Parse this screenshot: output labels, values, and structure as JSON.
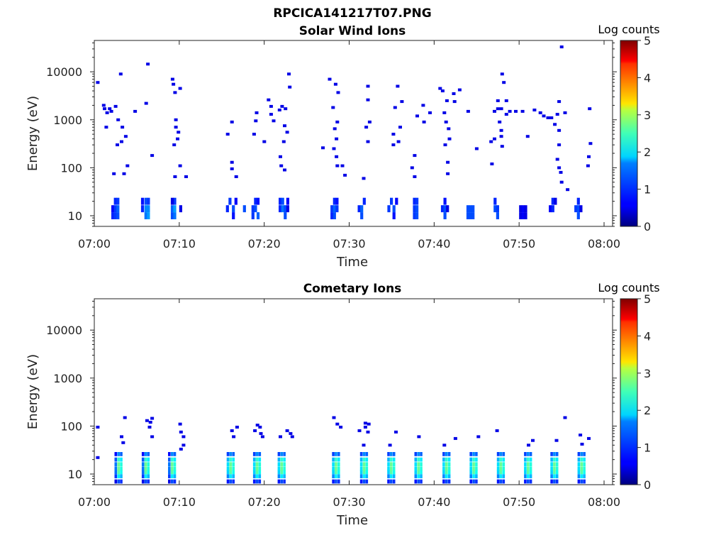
{
  "figure": {
    "title": "RPCICA141217T07.PNG"
  },
  "chart_data": [
    {
      "type": "heatmap",
      "title": "Solar Wind Ions",
      "xlabel": "Time",
      "ylabel": "Energy (eV)",
      "x_ticks": [
        "07:00",
        "07:10",
        "07:20",
        "07:30",
        "07:40",
        "07:50",
        "08:00"
      ],
      "x_range": [
        "07:00",
        "08:01"
      ],
      "y_scale": "log",
      "y_ticks": [
        "10",
        "100",
        "1000",
        "10000"
      ],
      "y_range": [
        6,
        45000
      ],
      "colorbar": {
        "label": "Log counts",
        "range": [
          0,
          5
        ],
        "ticks": [
          "0",
          "1",
          "2",
          "3",
          "4",
          "5"
        ],
        "colormap": "jet"
      },
      "cells": [
        [
          2.0,
          10,
          0.8
        ],
        [
          2.0,
          14,
          0.6
        ],
        [
          2.3,
          10,
          0.9
        ],
        [
          2.3,
          14,
          0.9
        ],
        [
          2.3,
          20,
          0.8
        ],
        [
          2.6,
          10,
          1.0
        ],
        [
          2.6,
          14,
          1.1
        ],
        [
          2.6,
          20,
          0.9
        ],
        [
          5.5,
          14,
          0.8
        ],
        [
          5.5,
          20,
          0.7
        ],
        [
          5.9,
          10,
          1.2
        ],
        [
          5.9,
          14,
          1.3
        ],
        [
          5.9,
          20,
          1.0
        ],
        [
          6.2,
          10,
          1.4
        ],
        [
          6.2,
          14,
          1.3
        ],
        [
          6.2,
          20,
          0.9
        ],
        [
          9.0,
          10,
          1.0
        ],
        [
          9.0,
          14,
          1.1
        ],
        [
          9.3,
          10,
          1.2
        ],
        [
          9.3,
          14,
          1.4
        ],
        [
          9.3,
          20,
          0.9
        ],
        [
          9.0,
          20,
          0.5
        ],
        [
          10.0,
          14,
          0.5
        ],
        [
          15.5,
          14,
          0.8
        ],
        [
          15.8,
          20,
          0.9
        ],
        [
          16.2,
          14,
          1.0
        ],
        [
          16.2,
          10,
          0.7
        ],
        [
          16.5,
          20,
          0.6
        ],
        [
          17.5,
          14,
          1.0
        ],
        [
          18.5,
          10,
          0.9
        ],
        [
          18.5,
          14,
          0.9
        ],
        [
          18.8,
          14,
          1.0
        ],
        [
          18.8,
          20,
          0.8
        ],
        [
          19.1,
          10,
          1.1
        ],
        [
          19.1,
          20,
          0.7
        ],
        [
          21.7,
          14,
          0.8
        ],
        [
          21.7,
          20,
          0.8
        ],
        [
          22.0,
          14,
          1.2
        ],
        [
          22.0,
          20,
          1.0
        ],
        [
          22.3,
          10,
          1.0
        ],
        [
          22.3,
          14,
          1.0
        ],
        [
          22.6,
          20,
          0.6
        ],
        [
          22.6,
          14,
          0.5
        ],
        [
          27.8,
          10,
          0.8
        ],
        [
          27.8,
          14,
          0.9
        ],
        [
          28.1,
          10,
          1.0
        ],
        [
          28.1,
          14,
          1.1
        ],
        [
          28.1,
          20,
          0.8
        ],
        [
          28.4,
          14,
          0.9
        ],
        [
          28.4,
          20,
          0.7
        ],
        [
          31.0,
          14,
          0.8
        ],
        [
          31.3,
          10,
          1.0
        ],
        [
          31.3,
          14,
          1.1
        ],
        [
          31.6,
          20,
          0.8
        ],
        [
          34.5,
          14,
          0.9
        ],
        [
          34.8,
          20,
          0.9
        ],
        [
          35.1,
          14,
          1.0
        ],
        [
          35.1,
          10,
          0.7
        ],
        [
          35.4,
          20,
          0.6
        ],
        [
          37.5,
          10,
          0.9
        ],
        [
          37.5,
          14,
          0.9
        ],
        [
          37.5,
          20,
          0.8
        ],
        [
          37.8,
          10,
          1.0
        ],
        [
          37.8,
          14,
          1.0
        ],
        [
          37.8,
          20,
          0.9
        ],
        [
          40.8,
          14,
          0.8
        ],
        [
          41.1,
          10,
          1.0
        ],
        [
          41.1,
          14,
          1.0
        ],
        [
          41.1,
          20,
          0.7
        ],
        [
          41.4,
          14,
          0.5
        ],
        [
          43.8,
          10,
          1.0
        ],
        [
          43.8,
          14,
          1.0
        ],
        [
          44.1,
          10,
          1.0
        ],
        [
          44.1,
          14,
          1.0
        ],
        [
          44.4,
          10,
          1.0
        ],
        [
          44.4,
          14,
          1.0
        ],
        [
          47.0,
          14,
          1.0
        ],
        [
          47.0,
          20,
          0.8
        ],
        [
          47.3,
          10,
          1.0
        ],
        [
          47.3,
          14,
          0.9
        ],
        [
          50.0,
          10,
          0.5
        ],
        [
          50.0,
          14,
          0.5
        ],
        [
          50.3,
          10,
          0.6
        ],
        [
          50.3,
          14,
          0.6
        ],
        [
          50.6,
          10,
          0.5
        ],
        [
          50.6,
          14,
          0.5
        ],
        [
          53.5,
          14,
          0.6
        ],
        [
          53.8,
          14,
          0.8
        ],
        [
          53.8,
          20,
          0.8
        ],
        [
          54.1,
          20,
          0.5
        ],
        [
          56.5,
          14,
          0.9
        ],
        [
          56.8,
          10,
          1.0
        ],
        [
          56.8,
          14,
          1.0
        ],
        [
          56.8,
          20,
          0.8
        ],
        [
          57.1,
          14,
          0.5
        ]
      ],
      "sparse_points": [
        [
          0.2,
          6000
        ],
        [
          0.9,
          2000
        ],
        [
          1.0,
          1700
        ],
        [
          1.2,
          700
        ],
        [
          1.3,
          1400
        ],
        [
          1.6,
          1700
        ],
        [
          1.8,
          1500
        ],
        [
          2.3,
          1900
        ],
        [
          2.6,
          1000
        ],
        [
          2.9,
          9000
        ],
        [
          3.1,
          700
        ],
        [
          3.5,
          450
        ],
        [
          3.0,
          350
        ],
        [
          2.5,
          300
        ],
        [
          3.7,
          110
        ],
        [
          3.3,
          75
        ],
        [
          2.1,
          75
        ],
        [
          4.6,
          1500
        ],
        [
          5.9,
          2200
        ],
        [
          6.1,
          14500
        ],
        [
          6.6,
          180
        ],
        [
          9.0,
          7000
        ],
        [
          9.1,
          5500
        ],
        [
          9.3,
          3700
        ],
        [
          9.4,
          1000
        ],
        [
          9.4,
          700
        ],
        [
          9.9,
          4500
        ],
        [
          9.6,
          400
        ],
        [
          9.2,
          300
        ],
        [
          9.7,
          550
        ],
        [
          9.9,
          110
        ],
        [
          10.6,
          65
        ],
        [
          9.3,
          65
        ],
        [
          15.5,
          500
        ],
        [
          16.0,
          900
        ],
        [
          16.0,
          130
        ],
        [
          16.0,
          95
        ],
        [
          16.5,
          65
        ],
        [
          18.6,
          500
        ],
        [
          18.8,
          950
        ],
        [
          18.9,
          1400
        ],
        [
          19.8,
          350
        ],
        [
          20.3,
          2600
        ],
        [
          20.6,
          1900
        ],
        [
          20.6,
          1300
        ],
        [
          20.9,
          950
        ],
        [
          21.6,
          1600
        ],
        [
          21.9,
          1900
        ],
        [
          22.3,
          1700
        ],
        [
          22.7,
          9000
        ],
        [
          22.8,
          4800
        ],
        [
          22.2,
          750
        ],
        [
          22.5,
          550
        ],
        [
          22.1,
          350
        ],
        [
          21.7,
          170
        ],
        [
          21.8,
          110
        ],
        [
          22.2,
          90
        ],
        [
          27.5,
          7000
        ],
        [
          28.2,
          5500
        ],
        [
          28.5,
          3700
        ],
        [
          27.9,
          1800
        ],
        [
          28.4,
          900
        ],
        [
          28.1,
          650
        ],
        [
          28.3,
          400
        ],
        [
          28.0,
          250
        ],
        [
          28.3,
          170
        ],
        [
          28.4,
          110
        ],
        [
          29.0,
          110
        ],
        [
          29.3,
          70
        ],
        [
          26.7,
          260
        ],
        [
          32.0,
          5000
        ],
        [
          32.0,
          2600
        ],
        [
          32.2,
          900
        ],
        [
          31.8,
          700
        ],
        [
          32.0,
          350
        ],
        [
          31.5,
          60
        ],
        [
          35.5,
          5000
        ],
        [
          36.0,
          2400
        ],
        [
          35.2,
          1800
        ],
        [
          35.0,
          500
        ],
        [
          35.6,
          350
        ],
        [
          35.0,
          300
        ],
        [
          35.8,
          700
        ],
        [
          37.5,
          180
        ],
        [
          37.2,
          100
        ],
        [
          37.5,
          65
        ],
        [
          37.8,
          1200
        ],
        [
          38.6,
          900
        ],
        [
          39.3,
          1400
        ],
        [
          38.5,
          2000
        ],
        [
          40.5,
          4500
        ],
        [
          40.8,
          4000
        ],
        [
          41.3,
          2500
        ],
        [
          42.1,
          3500
        ],
        [
          42.8,
          4200
        ],
        [
          42.2,
          2400
        ],
        [
          41.0,
          1400
        ],
        [
          41.2,
          900
        ],
        [
          41.5,
          650
        ],
        [
          41.6,
          400
        ],
        [
          41.1,
          300
        ],
        [
          41.4,
          130
        ],
        [
          41.4,
          75
        ],
        [
          43.8,
          1500
        ],
        [
          44.8,
          250
        ],
        [
          46.5,
          350
        ],
        [
          46.9,
          1500
        ],
        [
          47.3,
          1700
        ],
        [
          47.3,
          2500
        ],
        [
          47.7,
          1700
        ],
        [
          47.8,
          9000
        ],
        [
          48.0,
          6000
        ],
        [
          48.3,
          2500
        ],
        [
          48.3,
          1300
        ],
        [
          47.5,
          900
        ],
        [
          47.7,
          600
        ],
        [
          47.7,
          450
        ],
        [
          47.8,
          280
        ],
        [
          46.9,
          400
        ],
        [
          46.6,
          120
        ],
        [
          48.7,
          1500
        ],
        [
          49.4,
          1500
        ],
        [
          50.2,
          1500
        ],
        [
          50.8,
          450
        ],
        [
          51.6,
          1600
        ],
        [
          52.3,
          1400
        ],
        [
          52.7,
          1200
        ],
        [
          53.2,
          1100
        ],
        [
          53.6,
          1100
        ],
        [
          54.0,
          800
        ],
        [
          54.3,
          1300
        ],
        [
          54.5,
          2400
        ],
        [
          55.2,
          1400
        ],
        [
          54.5,
          600
        ],
        [
          54.5,
          300
        ],
        [
          54.3,
          150
        ],
        [
          54.5,
          100
        ],
        [
          54.7,
          80
        ],
        [
          54.8,
          50
        ],
        [
          54.8,
          33000
        ],
        [
          55.5,
          35
        ],
        [
          58.1,
          1700
        ],
        [
          58.2,
          320
        ],
        [
          58.0,
          170
        ],
        [
          57.9,
          110
        ]
      ]
    },
    {
      "type": "heatmap",
      "title": "Cometary Ions",
      "xlabel": "Time",
      "ylabel": "Energy (eV)",
      "x_ticks": [
        "07:00",
        "07:10",
        "07:20",
        "07:30",
        "07:40",
        "07:50",
        "08:00"
      ],
      "x_range": [
        "07:00",
        "08:01"
      ],
      "y_scale": "log",
      "y_ticks": [
        "10",
        "100",
        "1000",
        "10000"
      ],
      "y_range": [
        6,
        45000
      ],
      "colorbar": {
        "label": "Log counts",
        "range": [
          0,
          5
        ],
        "ticks": [
          "0",
          "1",
          "2",
          "3",
          "4",
          "5"
        ],
        "colormap": "jet"
      },
      "burst_times_min": [
        2.7,
        5.9,
        9.0,
        15.9,
        19.0,
        21.9,
        28.3,
        31.6,
        34.8,
        38.0,
        41.3,
        44.5,
        47.7,
        50.9,
        54.0,
        57.2
      ],
      "burst_profile": [
        [
          7,
          1.0
        ],
        [
          9,
          1.8
        ],
        [
          11,
          2.3
        ],
        [
          13,
          2.4
        ],
        [
          16,
          2.4
        ],
        [
          20,
          2.1
        ],
        [
          26,
          1.3
        ]
      ],
      "sparse_points": [
        [
          0.2,
          95
        ],
        [
          0.2,
          22
        ],
        [
          3.0,
          60
        ],
        [
          3.2,
          45
        ],
        [
          3.4,
          150
        ],
        [
          6.0,
          130
        ],
        [
          6.4,
          120
        ],
        [
          6.3,
          95
        ],
        [
          6.6,
          60
        ],
        [
          6.6,
          145
        ],
        [
          9.9,
          110
        ],
        [
          10.0,
          75
        ],
        [
          10.3,
          60
        ],
        [
          10.3,
          40
        ],
        [
          10.0,
          33
        ],
        [
          16.0,
          80
        ],
        [
          16.2,
          60
        ],
        [
          16.6,
          95
        ],
        [
          18.7,
          80
        ],
        [
          19.0,
          105
        ],
        [
          19.3,
          95
        ],
        [
          19.4,
          70
        ],
        [
          19.6,
          60
        ],
        [
          21.7,
          60
        ],
        [
          22.5,
          80
        ],
        [
          22.9,
          70
        ],
        [
          23.1,
          60
        ],
        [
          28.0,
          150
        ],
        [
          28.4,
          110
        ],
        [
          28.8,
          95
        ],
        [
          31.0,
          80
        ],
        [
          31.7,
          115
        ],
        [
          31.7,
          95
        ],
        [
          32.1,
          110
        ],
        [
          32.0,
          75
        ],
        [
          31.5,
          40
        ],
        [
          35.3,
          75
        ],
        [
          34.6,
          40
        ],
        [
          38.0,
          60
        ],
        [
          41.0,
          40
        ],
        [
          42.3,
          55
        ],
        [
          45.0,
          60
        ],
        [
          47.2,
          80
        ],
        [
          51.4,
          50
        ],
        [
          50.9,
          40
        ],
        [
          54.2,
          50
        ],
        [
          55.2,
          150
        ],
        [
          57.0,
          65
        ],
        [
          58.0,
          55
        ],
        [
          57.2,
          42
        ]
      ]
    }
  ]
}
